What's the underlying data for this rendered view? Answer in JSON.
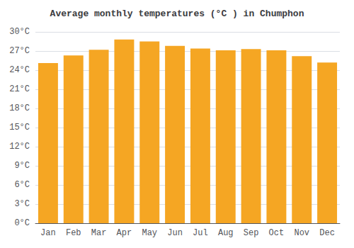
{
  "chart_data": {
    "type": "bar",
    "title": "Average monthly temperatures (°C ) in Chumphon",
    "categories": [
      "Jan",
      "Feb",
      "Mar",
      "Apr",
      "May",
      "Jun",
      "Jul",
      "Aug",
      "Sep",
      "Oct",
      "Nov",
      "Dec"
    ],
    "values": [
      25.1,
      26.3,
      27.2,
      28.8,
      28.5,
      27.8,
      27.4,
      27.1,
      27.3,
      27.1,
      26.2,
      25.2
    ],
    "color": "#F5A623",
    "ylim": [
      0,
      30
    ],
    "yticks": [
      {
        "value": 0,
        "label": "0°C"
      },
      {
        "value": 3,
        "label": "3°C"
      },
      {
        "value": 6,
        "label": "6°C"
      },
      {
        "value": 9,
        "label": "9°C"
      },
      {
        "value": 12,
        "label": "12°C"
      },
      {
        "value": 15,
        "label": "15°C"
      },
      {
        "value": 18,
        "label": "18°C"
      },
      {
        "value": 21,
        "label": "21°C"
      },
      {
        "value": 24,
        "label": "24°C"
      },
      {
        "value": 27,
        "label": "27°C"
      },
      {
        "value": 30,
        "label": "30°C"
      }
    ],
    "grid": true
  }
}
